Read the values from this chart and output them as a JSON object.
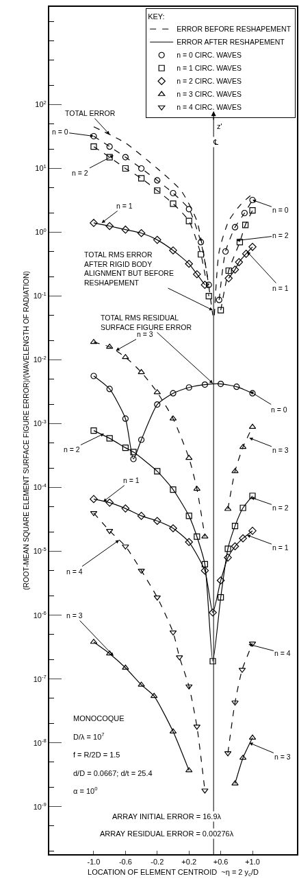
{
  "chart_data": {
    "type": "line",
    "xlabel": "LOCATION OF ELEMENT CENTROID  ~η = 2 y$_{c}$/D",
    "ylabel": "(ROOT-MEAN SQUARE ELEMENT SURFACE FIGURE ERROR)/(WAVELENGTH OF RADIATION)",
    "legend_title": "KEY:",
    "legend": "top right",
    "log": true,
    "xlim": [
      -1.56,
      1.56
    ],
    "xticks": [
      {
        "value": -1,
        "label": "-1.0"
      },
      -0.6,
      -0.2,
      {
        "value": 0.2,
        "label": "+0.2"
      },
      {
        "value": 0.6,
        "label": "+0.6"
      },
      {
        "value": 1,
        "label": "+1.0"
      }
    ],
    "ylim": [
      1.8e-10,
      3400
    ],
    "yticks": [
      {
        "value": 1e-09,
        "label": "10$^{-9}$"
      },
      {
        "value": 1e-08,
        "label": "10$^{-8}$"
      },
      {
        "value": 1e-07,
        "label": "10$^{-7}$"
      },
      {
        "value": 1e-06,
        "label": "10$^{-6}$"
      },
      {
        "value": 1e-05,
        "label": "10$^{-5}$"
      },
      {
        "value": 0.0001,
        "label": "10$^{-4}$"
      },
      {
        "value": 0.001,
        "label": "10$^{-3}$"
      },
      {
        "value": 0.01,
        "label": "10$^{-2}$"
      },
      {
        "value": 0.1,
        "label": "10$^{-1}$"
      },
      {
        "value": 1,
        "label": "10$^{0}$"
      },
      {
        "value": 10,
        "label": "10$^{1}$"
      },
      {
        "value": 100,
        "label": "10$^{2}$"
      }
    ],
    "series": [
      {
        "name": "ERROR BEFORE RESHAPEMENT",
        "color": "#000000",
        "marker": "none",
        "line_style": "dashed"
      },
      {
        "name": "ERROR AFTER RESHAPEMENT",
        "color": "#000000",
        "marker": "none",
        "line_style": "solid"
      },
      {
        "name": "n = 0 CIRC. WAVES",
        "color": "#000000",
        "marker": "circle",
        "line_style": "none"
      },
      {
        "name": "n = 1 CIRC. WAVES",
        "color": "#000000",
        "marker": "square",
        "line_style": "none"
      },
      {
        "name": "n = 2 CIRC. WAVES",
        "color": "#000000",
        "marker": "diamond",
        "line_style": "none"
      },
      {
        "name": "n = 3 CIRC. WAVES",
        "color": "#000000",
        "marker": "triangle",
        "line_style": "none"
      },
      {
        "name": "n = 4 CIRC. WAVES",
        "color": "#000000",
        "marker": "triangle-down",
        "line_style": "none"
      },
      {
        "color": "#000000",
        "marker": "none",
        "line_style": "dashed",
        "x": [
          -1.0,
          -0.6,
          -0.2,
          0.1,
          0.3,
          0.42,
          0.5
        ],
        "values": [
          45,
          25,
          10,
          4.5,
          1.5,
          0.25,
          0.05
        ]
      },
      {
        "color": "#000000",
        "marker": "none",
        "line_style": "dashed",
        "x": [
          0.52,
          0.58,
          0.7,
          0.85,
          1.0
        ],
        "values": [
          0.05,
          0.5,
          1.5,
          2.7,
          4.0
        ]
      },
      {
        "color": "#000000",
        "marker": "circle",
        "line_style": "dashed",
        "x": [
          -1.0,
          -0.8,
          -0.6,
          -0.4,
          -0.2,
          0.0,
          0.2,
          0.35,
          0.45
        ],
        "values": [
          32,
          22,
          15,
          10,
          6.5,
          4.1,
          2.3,
          0.7,
          0.15
        ]
      },
      {
        "color": "#000000",
        "marker": "circle",
        "line_style": "dashed",
        "x": [
          0.58,
          0.66,
          0.78,
          0.9,
          1.0
        ],
        "values": [
          0.087,
          0.5,
          1.2,
          2.0,
          3.2
        ]
      },
      {
        "color": "#000000",
        "marker": "square",
        "line_style": "dashed",
        "x": [
          -1.0,
          -0.8,
          -0.6,
          -0.4,
          -0.2,
          0.0,
          0.2,
          0.35,
          0.45
        ],
        "values": [
          22,
          15,
          10,
          7,
          4.5,
          2.8,
          1.5,
          0.45,
          0.1
        ]
      },
      {
        "color": "#000000",
        "marker": "square",
        "line_style": "dashed",
        "x": [
          0.6,
          0.7,
          0.84,
          0.91,
          1.0
        ],
        "values": [
          0.06,
          0.25,
          0.7,
          1.3,
          2.2
        ]
      },
      {
        "color": "#000000",
        "marker": "diamond",
        "line_style": "solid",
        "x": [
          -1.0,
          -0.8,
          -0.6,
          -0.4,
          -0.2,
          0.0,
          0.2,
          0.3,
          0.4
        ],
        "values": [
          1.4,
          1.25,
          1.1,
          0.97,
          0.76,
          0.52,
          0.32,
          0.22,
          0.15
        ]
      },
      {
        "color": "#000000",
        "marker": "diamond",
        "line_style": "solid",
        "x": [
          0.7,
          0.78,
          0.83,
          0.92,
          1.0
        ],
        "values": [
          0.19,
          0.26,
          0.34,
          0.46,
          0.59
        ]
      },
      {
        "color": "#000000",
        "marker": "circle",
        "line_style": "solid",
        "x": [
          -1.0,
          -0.8,
          -0.6,
          -0.5,
          -0.4,
          -0.2,
          0.0,
          0.2,
          0.4,
          0.6,
          0.8,
          1.0
        ],
        "values": [
          0.0056,
          0.0035,
          0.0012,
          0.00028,
          0.00056,
          0.002,
          0.003,
          0.0037,
          0.0041,
          0.0042,
          0.0038,
          0.003
        ]
      },
      {
        "color": "#000000",
        "marker": "square",
        "line_style": "solid",
        "x": [
          -1.0,
          -0.8,
          -0.6,
          -0.5,
          -0.2,
          0.0,
          0.2,
          0.3,
          0.4,
          0.5,
          0.6,
          0.69,
          0.78,
          0.88,
          1.0
        ],
        "values": [
          0.00078,
          0.00059,
          0.00042,
          0.00036,
          0.00018,
          9.3e-05,
          3.6e-05,
          1.7e-05,
          6.3e-06,
          1.9e-07,
          1.9e-06,
          1.1e-05,
          2.5e-05,
          4.8e-05,
          7.4e-05
        ]
      },
      {
        "color": "#000000",
        "marker": "diamond",
        "line_style": "solid",
        "x": [
          -1.0,
          -0.8,
          -0.6,
          -0.4,
          -0.2,
          0.0,
          0.2,
          0.4,
          0.5,
          0.6,
          0.69,
          0.78,
          0.88,
          1.0
        ],
        "values": [
          6.6e-05,
          5.8e-05,
          4.7e-05,
          3.6e-05,
          3e-05,
          2.3e-05,
          1.4e-05,
          5e-06,
          1.1e-06,
          3.5e-06,
          8e-06,
          1.2e-05,
          1.6e-05,
          2.1e-05
        ]
      },
      {
        "color": "#000000",
        "marker": "triangle",
        "line_style": "dashed",
        "x": [
          -1.0,
          -0.8,
          -0.6,
          -0.4,
          -0.2,
          0.0,
          0.2,
          0.3,
          0.4
        ],
        "values": [
          0.019,
          0.016,
          0.011,
          0.0064,
          0.0031,
          0.0012,
          0.00029,
          9.5e-05,
          1.7e-05
        ]
      },
      {
        "color": "#000000",
        "marker": "triangle",
        "line_style": "dashed",
        "x": [
          0.69,
          0.78,
          0.88,
          1.0
        ],
        "values": [
          4.6e-05,
          0.00018,
          0.00043,
          0.00089
        ]
      },
      {
        "color": "#000000",
        "marker": "triangle",
        "line_style": "solid",
        "x": [
          -1.0,
          -0.8,
          -0.6,
          -0.4,
          -0.24,
          0.0,
          0.2
        ],
        "values": [
          3.8e-07,
          2.5e-07,
          1.5e-07,
          8.1e-08,
          5.4e-08,
          1.5e-08,
          3.7e-09
        ]
      },
      {
        "color": "#000000",
        "marker": "triangle",
        "line_style": "solid",
        "x": [
          0.78,
          0.88,
          1.0
        ],
        "values": [
          2.3e-09,
          5.8e-09,
          1.2e-08
        ]
      },
      {
        "color": "#000000",
        "marker": "triangle-down",
        "line_style": "dashed",
        "x": [
          -1.0,
          -0.8,
          -0.6,
          -0.4,
          -0.2,
          0.0,
          0.08,
          0.2,
          0.3,
          0.4
        ],
        "values": [
          4e-05,
          2.1e-05,
          1.2e-05,
          5e-06,
          1.9e-06,
          5.4e-07,
          2.2e-07,
          7.7e-08,
          1.8e-08,
          1.8e-09
        ]
      },
      {
        "color": "#000000",
        "marker": "triangle-down",
        "line_style": "dashed",
        "x": [
          0.69,
          0.78,
          0.87,
          1.0
        ],
        "values": [
          6.9e-09,
          4.3e-08,
          1.4e-07,
          3.6e-07
        ]
      }
    ],
    "ref_lines": [
      {
        "axis": "x",
        "value": 0.51,
        "label": "z'"
      }
    ],
    "annotations": [
      {
        "text": "TOTAL ERROR",
        "x": -0.8,
        "y": 34
      },
      {
        "text": "n = 0",
        "x": -1.0,
        "y": 32
      },
      {
        "text": "n = 2",
        "x": -0.75,
        "y": 16
      },
      {
        "text": "n = 1",
        "x": -0.9,
        "y": 1.4
      },
      {
        "text": "n = 0",
        "x": 1.0,
        "y": 3.2
      },
      {
        "text": "n = 2",
        "x": 0.8,
        "y": 0.74
      },
      {
        "text": "n = 1",
        "x": 0.93,
        "y": 0.5
      },
      {
        "text": "TOTAL RMS ERROR\nAFTER RIGID BODY\nALIGNMENT BUT BEFORE\nRESHAPEMENT",
        "x": 0.5,
        "y": 0.06
      },
      {
        "text": "TOTAL RMS RESIDUAL\nSURFACE FIGURE ERROR",
        "x": 0.5,
        "y": 0.0043
      },
      {
        "text": "n = 3",
        "x": -0.72,
        "y": 0.014
      },
      {
        "text": "n = 0",
        "x": 0.97,
        "y": 0.0032
      },
      {
        "text": "n = 2",
        "x": -0.87,
        "y": 0.0007
      },
      {
        "text": "n = 3",
        "x": 0.96,
        "y": 0.0006
      },
      {
        "text": "n = 1",
        "x": -0.88,
        "y": 6e-05
      },
      {
        "text": "n = 2",
        "x": 0.98,
        "y": 7e-05
      },
      {
        "text": "n = 1",
        "x": 0.93,
        "y": 1.8e-05
      },
      {
        "text": "n = 4",
        "x": -0.68,
        "y": 1.5e-05
      },
      {
        "text": "n = 4",
        "x": 0.95,
        "y": 3.5e-07
      },
      {
        "text": "n = 3",
        "x": -0.75,
        "y": 2.3e-07
      },
      {
        "text": "n = 3",
        "x": 0.96,
        "y": 1e-08
      },
      "MONOCOQUE",
      "D/λ = 10$^{7}$",
      "f = R/2D = 1.5",
      "d/D = 0.0667; d/t = 25.4",
      "α = 10$^{0}$",
      "ARRAY INITIAL ERROR = 16.9λ",
      "ARRAY RESIDUAL ERROR = 0.00276λ",
      "℄"
    ]
  }
}
